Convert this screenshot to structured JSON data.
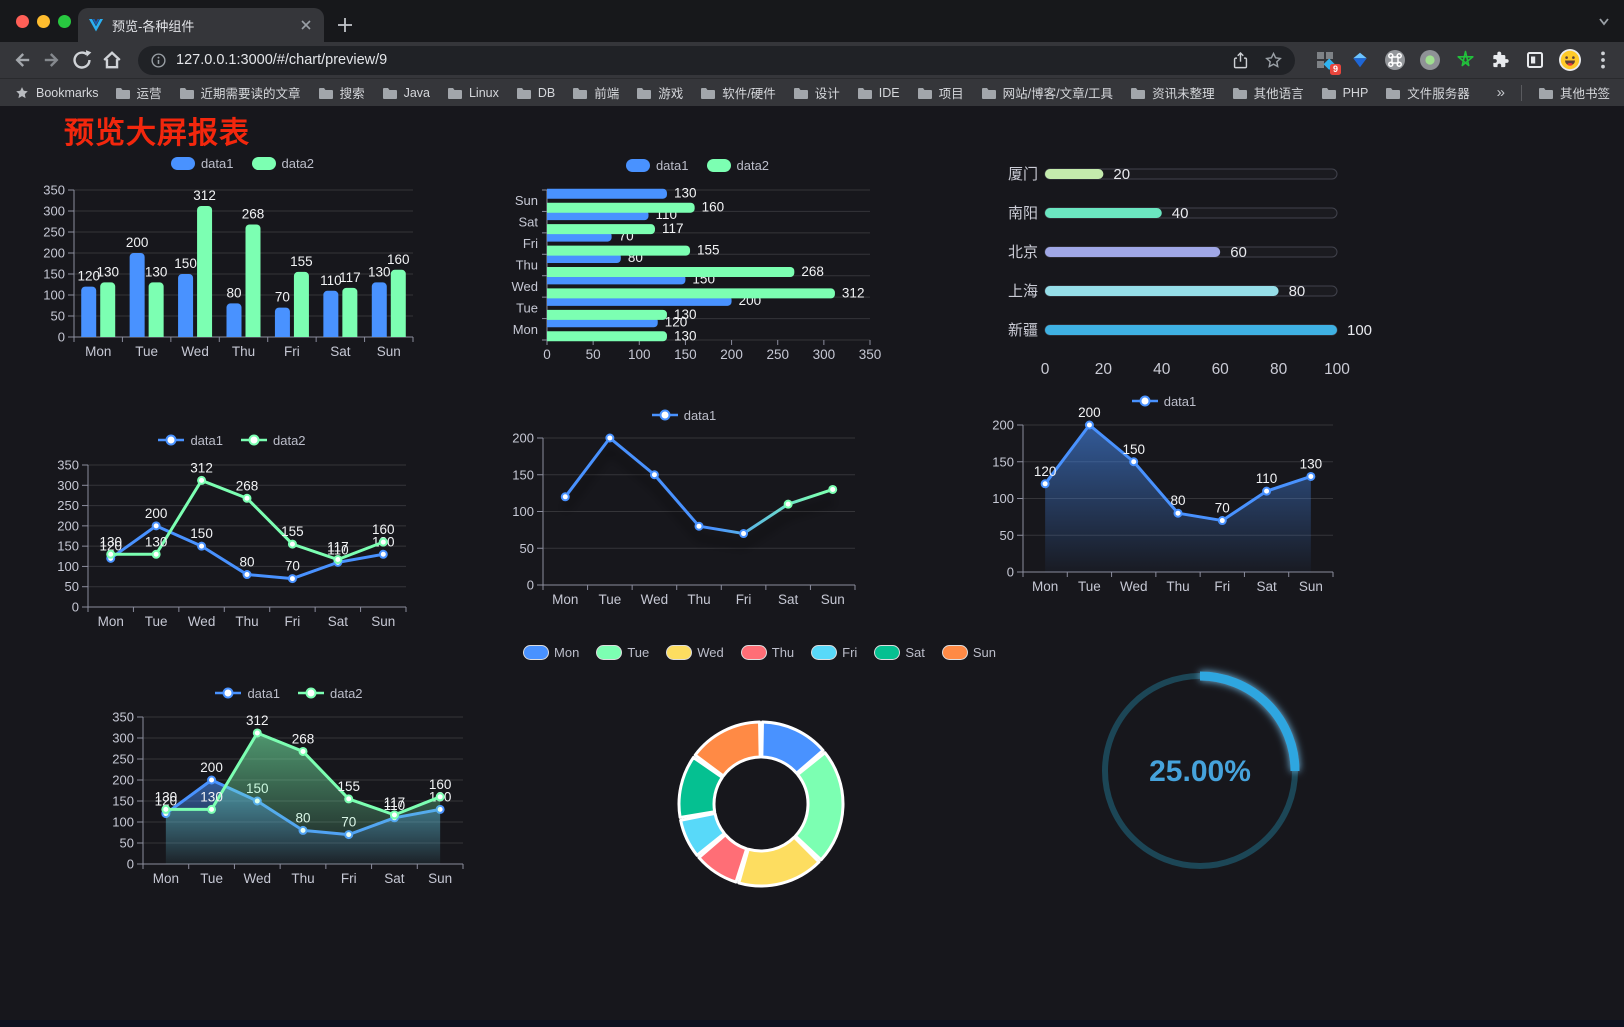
{
  "browser": {
    "window_controls": [
      "close",
      "minimize",
      "zoom"
    ],
    "tab": {
      "title": "预览-各种组件"
    },
    "url": "127.0.0.1:3000/#/chart/preview/9",
    "extensions_badge": "9",
    "icons": [
      "back",
      "forward",
      "reload",
      "home",
      "info",
      "share",
      "bookmark-star",
      "extensions-grid",
      "gem",
      "command",
      "recorder",
      "green-star",
      "puzzle",
      "frame",
      "emoji",
      "menu",
      "new-tab-plus",
      "tab-overflow-chevron",
      "tab-close"
    ]
  },
  "bookmarks": {
    "label": "Bookmarks",
    "items": [
      "运营",
      "近期需要读的文章",
      "搜索",
      "Java",
      "Linux",
      "DB",
      "前端",
      "游戏",
      "软件/硬件",
      "设计",
      "IDE",
      "项目",
      "网站/博客/文章/工具",
      "资讯未整理",
      "其他语言",
      "PHP",
      "文件服务器"
    ],
    "overflow": "»",
    "other": "其他书签"
  },
  "page": {
    "title": "预览大屏报表",
    "title_color": "#f3270d",
    "background": "#17171c"
  },
  "chart_data": [
    {
      "type": "bar",
      "variant": "grouped-vertical",
      "categories": [
        "Mon",
        "Tue",
        "Wed",
        "Thu",
        "Fri",
        "Sat",
        "Sun"
      ],
      "series": [
        {
          "name": "data1",
          "color": "#4992ff",
          "values": [
            120,
            200,
            150,
            80,
            70,
            110,
            130
          ]
        },
        {
          "name": "data2",
          "color": "#7cffb2",
          "values": [
            130,
            130,
            312,
            268,
            155,
            117,
            160
          ]
        }
      ],
      "ylim": [
        0,
        350
      ],
      "yticks": [
        0,
        50,
        100,
        150,
        200,
        250,
        300,
        350
      ],
      "labels": true,
      "grid": true,
      "legend_position": "top"
    },
    {
      "type": "bar",
      "variant": "grouped-horizontal",
      "categories": [
        "Mon",
        "Tue",
        "Wed",
        "Thu",
        "Fri",
        "Sat",
        "Sun"
      ],
      "series": [
        {
          "name": "data1",
          "color": "#4992ff",
          "values": [
            120,
            200,
            150,
            80,
            70,
            110,
            130
          ]
        },
        {
          "name": "data2",
          "color": "#7cffb2",
          "values": [
            130,
            130,
            312,
            268,
            155,
            117,
            160
          ]
        }
      ],
      "xlim": [
        0,
        350
      ],
      "xticks": [
        0,
        50,
        100,
        150,
        200,
        250,
        300,
        350
      ],
      "labels": true,
      "grid": true,
      "legend_position": "top"
    },
    {
      "type": "bar",
      "variant": "capsule-progress",
      "categories": [
        "厦门",
        "南阳",
        "北京",
        "上海",
        "新疆"
      ],
      "values": [
        20,
        40,
        60,
        80,
        100
      ],
      "colors": [
        "#c4ebad",
        "#6be6c1",
        "#a0a7e6",
        "#96dee8",
        "#3fb1e3"
      ],
      "xlim": [
        0,
        100
      ],
      "xticks": [
        0,
        20,
        40,
        60,
        80,
        100
      ],
      "labels": true,
      "grid": false
    },
    {
      "type": "line",
      "variant": "two-series",
      "categories": [
        "Mon",
        "Tue",
        "Wed",
        "Thu",
        "Fri",
        "Sat",
        "Sun"
      ],
      "series": [
        {
          "name": "data1",
          "color": "#4992ff",
          "values": [
            120,
            200,
            150,
            80,
            70,
            110,
            130
          ]
        },
        {
          "name": "data2",
          "color": "#7cffb2",
          "values": [
            130,
            130,
            312,
            268,
            155,
            117,
            160
          ]
        }
      ],
      "ylim": [
        0,
        350
      ],
      "yticks": [
        0,
        50,
        100,
        150,
        200,
        250,
        300,
        350
      ],
      "labels": true,
      "markers": true,
      "grid": true,
      "legend_position": "top"
    },
    {
      "type": "line",
      "variant": "gradient-single",
      "categories": [
        "Mon",
        "Tue",
        "Wed",
        "Thu",
        "Fri",
        "Sat",
        "Sun"
      ],
      "series": [
        {
          "name": "data1",
          "color": "#4992ff",
          "color_end": "#7cffb2",
          "values": [
            120,
            200,
            150,
            80,
            70,
            110,
            130
          ]
        }
      ],
      "ylim": [
        0,
        200
      ],
      "yticks": [
        0,
        50,
        100,
        150,
        200
      ],
      "labels": false,
      "markers": true,
      "grid": true,
      "legend_position": "top"
    },
    {
      "type": "line",
      "variant": "area-single",
      "categories": [
        "Mon",
        "Tue",
        "Wed",
        "Thu",
        "Fri",
        "Sat",
        "Sun"
      ],
      "series": [
        {
          "name": "data1",
          "color": "#4992ff",
          "area": true,
          "values": [
            120,
            200,
            150,
            80,
            70,
            110,
            130
          ]
        }
      ],
      "ylim": [
        0,
        200
      ],
      "yticks": [
        0,
        50,
        100,
        150,
        200
      ],
      "labels": true,
      "markers": true,
      "grid": true,
      "legend_position": "top"
    },
    {
      "type": "line",
      "variant": "two-series-area",
      "categories": [
        "Mon",
        "Tue",
        "Wed",
        "Thu",
        "Fri",
        "Sat",
        "Sun"
      ],
      "series": [
        {
          "name": "data1",
          "color": "#4992ff",
          "area": true,
          "values": [
            120,
            200,
            150,
            80,
            70,
            110,
            130
          ]
        },
        {
          "name": "data2",
          "color": "#7cffb2",
          "area": true,
          "values": [
            130,
            130,
            312,
            268,
            155,
            117,
            160
          ]
        }
      ],
      "ylim": [
        0,
        350
      ],
      "yticks": [
        0,
        50,
        100,
        150,
        200,
        250,
        300,
        350
      ],
      "labels": true,
      "markers": true,
      "grid": true,
      "legend_position": "top"
    },
    {
      "type": "pie",
      "variant": "doughnut",
      "categories": [
        "Mon",
        "Tue",
        "Wed",
        "Thu",
        "Fri",
        "Sat",
        "Sun"
      ],
      "values": [
        120,
        200,
        150,
        80,
        70,
        110,
        130
      ],
      "colors": [
        "#4992ff",
        "#7cffb2",
        "#fddd60",
        "#ff6e76",
        "#58d9f9",
        "#05c091",
        "#ff8a45"
      ],
      "legend_position": "top"
    },
    {
      "type": "gauge",
      "variant": "ring-progress",
      "percent": 25,
      "label": "25.00%",
      "color": "#2ea6e0",
      "track_color": "#1c4656",
      "text_color": "#46a3dc"
    }
  ]
}
